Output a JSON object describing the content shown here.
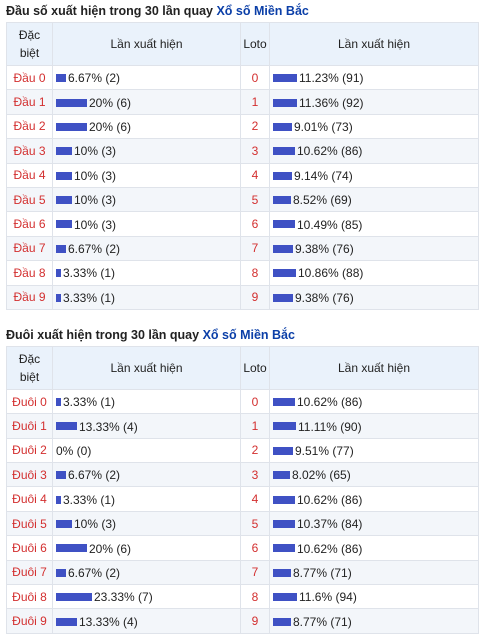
{
  "section1": {
    "title_prefix": "Đầu số xuất hiện trong 30 lần quay",
    "title_link": "Xổ số Miền Bắc",
    "col_dac": [
      "Đặc",
      "biệt"
    ],
    "col_lan": "Lần xuất hiện",
    "col_loto": "Loto",
    "col_lan2": "Lần xuất hiện",
    "rows": [
      {
        "label": "Đầu 0",
        "left": "6.67% (2)",
        "left_pct": 6.67,
        "loto": "0",
        "right": "11.23% (91)",
        "right_pct": 11.23
      },
      {
        "label": "Đầu 1",
        "left": "20% (6)",
        "left_pct": 20,
        "loto": "1",
        "right": "11.36% (92)",
        "right_pct": 11.36
      },
      {
        "label": "Đầu 2",
        "left": "20% (6)",
        "left_pct": 20,
        "loto": "2",
        "right": "9.01% (73)",
        "right_pct": 9.01
      },
      {
        "label": "Đầu 3",
        "left": "10% (3)",
        "left_pct": 10,
        "loto": "3",
        "right": "10.62% (86)",
        "right_pct": 10.62
      },
      {
        "label": "Đầu 4",
        "left": "10% (3)",
        "left_pct": 10,
        "loto": "4",
        "right": "9.14% (74)",
        "right_pct": 9.14
      },
      {
        "label": "Đầu 5",
        "left": "10% (3)",
        "left_pct": 10,
        "loto": "5",
        "right": "8.52% (69)",
        "right_pct": 8.52
      },
      {
        "label": "Đầu 6",
        "left": "10% (3)",
        "left_pct": 10,
        "loto": "6",
        "right": "10.49% (85)",
        "right_pct": 10.49
      },
      {
        "label": "Đầu 7",
        "left": "6.67% (2)",
        "left_pct": 6.67,
        "loto": "7",
        "right": "9.38% (76)",
        "right_pct": 9.38
      },
      {
        "label": "Đầu 8",
        "left": "3.33% (1)",
        "left_pct": 3.33,
        "loto": "8",
        "right": "10.86% (88)",
        "right_pct": 10.86
      },
      {
        "label": "Đầu 9",
        "left": "3.33% (1)",
        "left_pct": 3.33,
        "loto": "9",
        "right": "9.38% (76)",
        "right_pct": 9.38
      }
    ]
  },
  "section2": {
    "title_prefix": "Đuôi xuất hiện trong 30 lần quay",
    "title_link": "Xổ số Miền Bắc",
    "col_dac": [
      "Đặc",
      "biệt"
    ],
    "col_lan": "Lần xuất hiện",
    "col_loto": "Loto",
    "col_lan2": "Lần xuất hiện",
    "rows": [
      {
        "label": "Đuôi 0",
        "left": "3.33% (1)",
        "left_pct": 3.33,
        "loto": "0",
        "right": "10.62% (86)",
        "right_pct": 10.62
      },
      {
        "label": "Đuôi 1",
        "left": "13.33% (4)",
        "left_pct": 13.33,
        "loto": "1",
        "right": "11.11% (90)",
        "right_pct": 11.11
      },
      {
        "label": "Đuôi 2",
        "left": "0% (0)",
        "left_pct": 0,
        "loto": "2",
        "right": "9.51% (77)",
        "right_pct": 9.51
      },
      {
        "label": "Đuôi 3",
        "left": "6.67% (2)",
        "left_pct": 6.67,
        "loto": "3",
        "right": "8.02% (65)",
        "right_pct": 8.02
      },
      {
        "label": "Đuôi 4",
        "left": "3.33% (1)",
        "left_pct": 3.33,
        "loto": "4",
        "right": "10.62% (86)",
        "right_pct": 10.62
      },
      {
        "label": "Đuôi 5",
        "left": "10% (3)",
        "left_pct": 10,
        "loto": "5",
        "right": "10.37% (84)",
        "right_pct": 10.37
      },
      {
        "label": "Đuôi 6",
        "left": "20% (6)",
        "left_pct": 20,
        "loto": "6",
        "right": "10.62% (86)",
        "right_pct": 10.62
      },
      {
        "label": "Đuôi 7",
        "left": "6.67% (2)",
        "left_pct": 6.67,
        "loto": "7",
        "right": "8.77% (71)",
        "right_pct": 8.77
      },
      {
        "label": "Đuôi 8",
        "left": "23.33% (7)",
        "left_pct": 23.33,
        "loto": "8",
        "right": "11.6% (94)",
        "right_pct": 11.6
      },
      {
        "label": "Đuôi 9",
        "left": "13.33% (4)",
        "left_pct": 13.33,
        "loto": "9",
        "right": "8.77% (71)",
        "right_pct": 8.77
      }
    ]
  },
  "colors": {
    "bar": "#3f51c4",
    "label": "#d32f2f",
    "link": "#0b3fa8",
    "header_bg": "#eaf2fb"
  }
}
